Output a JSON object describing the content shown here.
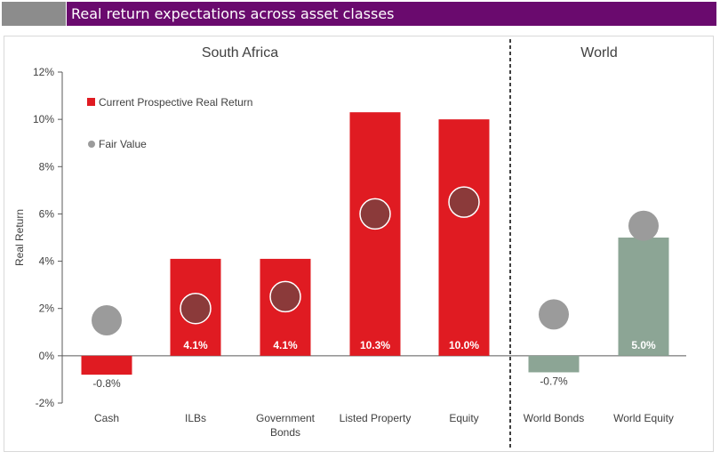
{
  "header": {
    "title": "Real return expectations across asset classes"
  },
  "chart_data": {
    "type": "bar",
    "ylabel": "Real Return",
    "ylim": [
      -2,
      12
    ],
    "yticks": [
      -2,
      0,
      2,
      4,
      6,
      8,
      10,
      12
    ],
    "ytick_labels": [
      "-2%",
      "0%",
      "2%",
      "4%",
      "6%",
      "8%",
      "10%",
      "12%"
    ],
    "categories": [
      "Cash",
      "ILBs",
      "Government Bonds",
      "Listed Property",
      "Equity",
      "World Bonds",
      "World Equity"
    ],
    "category_label_lines": [
      [
        "Cash"
      ],
      [
        "ILBs"
      ],
      [
        "Government",
        "Bonds"
      ],
      [
        "Listed Property"
      ],
      [
        "Equity"
      ],
      [
        "World Bonds"
      ],
      [
        "World Equity"
      ]
    ],
    "groups": [
      {
        "name": "South Africa",
        "categories": [
          0,
          1,
          2,
          3,
          4
        ]
      },
      {
        "name": "World",
        "categories": [
          5,
          6
        ]
      }
    ],
    "series": [
      {
        "name": "Current Prospective Real Return",
        "kind": "bar",
        "values": [
          -0.8,
          4.1,
          4.1,
          10.3,
          10.0,
          -0.7,
          5.0
        ],
        "labels": [
          "-0.8%",
          "4.1%",
          "4.1%",
          "10.3%",
          "10.0%",
          "-0.7%",
          "5.0%"
        ],
        "colors": [
          "#e01b22",
          "#e01b22",
          "#e01b22",
          "#e01b22",
          "#e01b22",
          "#8ca595",
          "#8ca595"
        ]
      },
      {
        "name": "Fair Value",
        "kind": "marker",
        "values": [
          1.5,
          2.0,
          2.5,
          6.0,
          6.5,
          1.75,
          5.5
        ]
      }
    ],
    "legend": {
      "position": "top-left",
      "bar_label": "Current Prospective Real Return",
      "marker_label": "Fair Value"
    },
    "colors": {
      "sa_bar": "#e01b22",
      "world_bar": "#8ca595",
      "marker_outside": "#9b9b9b",
      "marker_inside": "#8b3a3a",
      "axis": "#595959",
      "divider": "#404040"
    }
  }
}
